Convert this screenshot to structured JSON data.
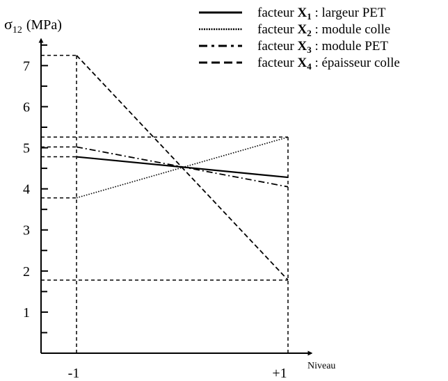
{
  "chart_data": {
    "type": "line",
    "y_axis_label": {
      "symbol": "σ",
      "subscript": "12",
      "unit": "(MPa)"
    },
    "x_axis_label": "Niveau",
    "x_tick_labels": [
      "-1",
      "+1"
    ],
    "x": [
      -1,
      1
    ],
    "y_ticks": [
      1,
      2,
      3,
      4,
      5,
      6,
      7
    ],
    "y_tick_labels": [
      "1",
      "2",
      "3",
      "4",
      "5",
      "6",
      "7"
    ],
    "y_range": [
      0,
      7.7
    ],
    "legend_position": "top-right",
    "series": [
      {
        "prefix": "facteur ",
        "factor": "X",
        "index": "1",
        "suffix": " : largeur PET",
        "style": "solid",
        "values": [
          4.78,
          4.28
        ]
      },
      {
        "prefix": "facteur ",
        "factor": "X",
        "index": "2",
        "suffix": " : module colle",
        "style": "dotted",
        "values": [
          3.78,
          5.26
        ]
      },
      {
        "prefix": "facteur ",
        "factor": "X",
        "index": "3",
        "suffix": " : module PET",
        "style": "dashdot",
        "values": [
          5.02,
          4.05
        ]
      },
      {
        "prefix": "facteur ",
        "factor": "X",
        "index": "4",
        "suffix": " : épaisseur colle",
        "style": "dashed",
        "values": [
          7.25,
          1.78
        ]
      }
    ]
  }
}
